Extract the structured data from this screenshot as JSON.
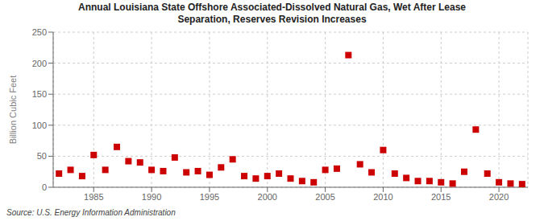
{
  "chart_data": {
    "type": "scatter",
    "title": "Annual Louisiana State Offshore Associated-Dissolved Natural Gas, Wet After Lease\nSeparation, Reserves Revision Increases",
    "ylabel": "Billion Cubic Feet",
    "annotations": [
      "Source: U.S. Energy Information Administration"
    ],
    "x": [
      1982,
      1983,
      1984,
      1985,
      1986,
      1987,
      1988,
      1989,
      1990,
      1991,
      1992,
      1993,
      1994,
      1995,
      1996,
      1997,
      1998,
      1999,
      2000,
      2001,
      2002,
      2003,
      2004,
      2005,
      2006,
      2007,
      2008,
      2009,
      2010,
      2011,
      2012,
      2013,
      2014,
      2015,
      2016,
      2017,
      2018,
      2019,
      2020,
      2021,
      2022
    ],
    "values": [
      22,
      28,
      18,
      52,
      28,
      65,
      42,
      40,
      28,
      26,
      48,
      24,
      26,
      20,
      32,
      45,
      18,
      14,
      18,
      22,
      14,
      10,
      8,
      28,
      30,
      213,
      37,
      24,
      60,
      22,
      15,
      10,
      10,
      8,
      6,
      25,
      93,
      22,
      8,
      6,
      5
    ],
    "color": "#cc0000",
    "marker": "square",
    "xlim": [
      1981.5,
      2022.5
    ],
    "ylim": [
      0,
      250
    ],
    "xticks": [
      1985,
      1990,
      1995,
      2000,
      2005,
      2010,
      2015,
      2020
    ],
    "yticks": [
      0,
      50,
      100,
      150,
      200,
      250
    ],
    "grid": true
  }
}
